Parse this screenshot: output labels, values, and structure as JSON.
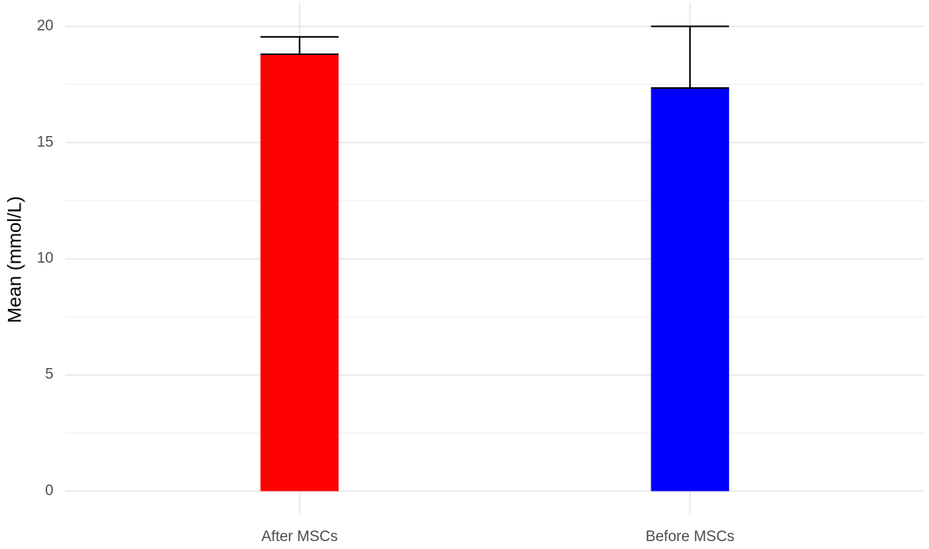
{
  "chart_data": {
    "type": "bar",
    "y_label": "Mean (mmol/L)",
    "categories": [
      "After MSCs",
      "Before MSCs"
    ],
    "values": [
      18.8,
      17.35
    ],
    "errors": [
      0.75,
      2.65
    ],
    "colors": [
      "#ff0000",
      "#0000ff"
    ],
    "ylim": [
      -1,
      21
    ],
    "yticks": [
      0,
      5,
      10,
      15,
      20
    ],
    "minor_yticks": [
      2.5,
      7.5,
      12.5,
      17.5
    ],
    "grid": true
  }
}
